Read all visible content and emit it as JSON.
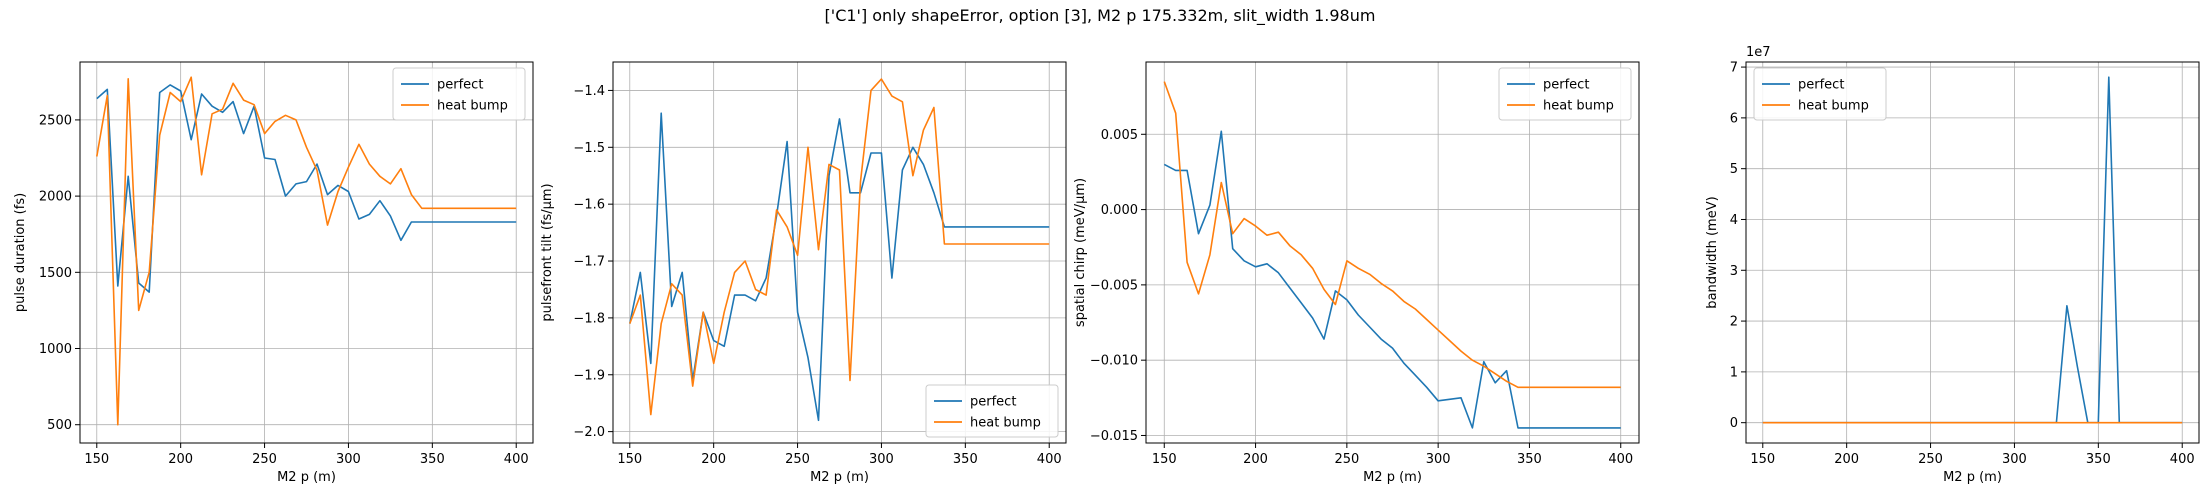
{
  "figure": {
    "title": "['C1'] only shapeError, option [3], M2 p 175.332m, slit_width 1.98um"
  },
  "chart_data": [
    {
      "type": "line",
      "xlabel": "M2 p (m)",
      "ylabel": "pulse duration (fs)",
      "xlim": [
        140,
        410
      ],
      "ylim": [
        380,
        2880
      ],
      "xticks": [
        150,
        200,
        250,
        300,
        350,
        400
      ],
      "yticks": [
        500,
        1000,
        1500,
        2000,
        2500
      ],
      "ytick_labels": [
        "500",
        "1000",
        "1500",
        "2000",
        "2500"
      ],
      "grid": true,
      "legend_position": "upper right",
      "x": [
        150,
        156.25,
        162.5,
        168.75,
        175,
        181.25,
        187.5,
        193.75,
        200,
        206.25,
        212.5,
        218.75,
        225,
        231.25,
        237.5,
        243.75,
        250,
        256.25,
        262.5,
        268.75,
        275,
        281.25,
        287.5,
        293.75,
        300,
        306.25,
        312.5,
        318.75,
        325,
        331.25,
        337.5,
        343.75,
        350,
        356.25,
        362.5,
        368.75,
        375,
        381.25,
        387.5,
        393.75,
        400
      ],
      "series": [
        {
          "name": "perfect",
          "color": "#1f77b4",
          "values": [
            2640,
            2700,
            1410,
            2130,
            1430,
            1370,
            2680,
            2730,
            2690,
            2370,
            2670,
            2590,
            2550,
            2620,
            2410,
            2590,
            2250,
            2240,
            2000,
            2080,
            2095,
            2210,
            2010,
            2070,
            2030,
            1850,
            1880,
            1970,
            1870,
            1710,
            1830,
            1830,
            1830,
            1830,
            1830,
            1830,
            1830,
            1830,
            1830,
            1830,
            1830
          ]
        },
        {
          "name": "heat bump",
          "color": "#ff7f0e",
          "values": [
            2260,
            2660,
            500,
            2770,
            1250,
            1500,
            2400,
            2680,
            2620,
            2780,
            2140,
            2540,
            2570,
            2740,
            2630,
            2600,
            2410,
            2490,
            2530,
            2500,
            2320,
            2170,
            1810,
            2030,
            2190,
            2340,
            2210,
            2130,
            2080,
            2180,
            2010,
            1920,
            1920,
            1920,
            1920,
            1920,
            1920,
            1920,
            1920,
            1920,
            1920
          ]
        }
      ]
    },
    {
      "type": "line",
      "xlabel": "M2 p (m)",
      "ylabel": "pulsefront tilt (fs/μm)",
      "xlim": [
        140,
        410
      ],
      "ylim": [
        -2.02,
        -1.35
      ],
      "xticks": [
        150,
        200,
        250,
        300,
        350,
        400
      ],
      "yticks": [
        -2.0,
        -1.9,
        -1.8,
        -1.7,
        -1.6,
        -1.5,
        -1.4
      ],
      "ytick_labels": [
        "−2.0",
        "−1.9",
        "−1.8",
        "−1.7",
        "−1.6",
        "−1.5",
        "−1.4"
      ],
      "grid": true,
      "legend_position": "lower right",
      "x": [
        150,
        156.25,
        162.5,
        168.75,
        175,
        181.25,
        187.5,
        193.75,
        200,
        206.25,
        212.5,
        218.75,
        225,
        231.25,
        237.5,
        243.75,
        250,
        256.25,
        262.5,
        268.75,
        275,
        281.25,
        287.5,
        293.75,
        300,
        306.25,
        312.5,
        318.75,
        325,
        331.25,
        337.5,
        343.75,
        350,
        356.25,
        362.5,
        368.75,
        375,
        381.25,
        387.5,
        393.75,
        400
      ],
      "series": [
        {
          "name": "perfect",
          "color": "#1f77b4",
          "values": [
            -1.81,
            -1.72,
            -1.88,
            -1.44,
            -1.78,
            -1.72,
            -1.91,
            -1.79,
            -1.84,
            -1.85,
            -1.76,
            -1.76,
            -1.77,
            -1.73,
            -1.62,
            -1.49,
            -1.79,
            -1.87,
            -1.98,
            -1.55,
            -1.45,
            -1.58,
            -1.58,
            -1.51,
            -1.51,
            -1.73,
            -1.54,
            -1.5,
            -1.53,
            -1.58,
            -1.64,
            -1.64,
            -1.64,
            -1.64,
            -1.64,
            -1.64,
            -1.64,
            -1.64,
            -1.64,
            -1.64,
            -1.64
          ]
        },
        {
          "name": "heat bump",
          "color": "#ff7f0e",
          "values": [
            -1.81,
            -1.76,
            -1.97,
            -1.81,
            -1.74,
            -1.76,
            -1.92,
            -1.79,
            -1.88,
            -1.79,
            -1.72,
            -1.7,
            -1.75,
            -1.76,
            -1.61,
            -1.64,
            -1.69,
            -1.5,
            -1.68,
            -1.53,
            -1.54,
            -1.91,
            -1.56,
            -1.4,
            -1.38,
            -1.41,
            -1.42,
            -1.55,
            -1.47,
            -1.43,
            -1.67,
            -1.67,
            -1.67,
            -1.67,
            -1.67,
            -1.67,
            -1.67,
            -1.67,
            -1.67,
            -1.67,
            -1.67
          ]
        }
      ]
    },
    {
      "type": "line",
      "xlabel": "M2 p (m)",
      "ylabel": "spatial chirp (meV/μm)",
      "xlim": [
        140,
        410
      ],
      "ylim": [
        -0.0155,
        0.0098
      ],
      "xticks": [
        150,
        200,
        250,
        300,
        350,
        400
      ],
      "yticks": [
        -0.015,
        -0.01,
        -0.005,
        0.0,
        0.005
      ],
      "ytick_labels": [
        "−0.015",
        "−0.010",
        "−0.005",
        "0.000",
        "0.005"
      ],
      "grid": true,
      "legend_position": "upper right",
      "x": [
        150,
        156.25,
        162.5,
        168.75,
        175,
        181.25,
        187.5,
        193.75,
        200,
        206.25,
        212.5,
        218.75,
        225,
        231.25,
        237.5,
        243.75,
        250,
        256.25,
        262.5,
        268.75,
        275,
        281.25,
        287.5,
        293.75,
        300,
        306.25,
        312.5,
        318.75,
        325,
        331.25,
        337.5,
        343.75,
        350,
        356.25,
        362.5,
        368.75,
        375,
        381.25,
        387.5,
        393.75,
        400
      ],
      "series": [
        {
          "name": "perfect",
          "color": "#1f77b4",
          "values": [
            0.003,
            0.0026,
            0.0026,
            -0.0016,
            0.0003,
            0.0052,
            -0.0026,
            -0.0034,
            -0.0038,
            -0.0036,
            -0.0042,
            -0.0052,
            -0.0062,
            -0.0072,
            -0.0086,
            -0.0054,
            -0.006,
            -0.007,
            -0.0078,
            -0.0086,
            -0.0092,
            -0.0102,
            -0.011,
            -0.0118,
            -0.0127,
            -0.0126,
            -0.0125,
            -0.0145,
            -0.0101,
            -0.0115,
            -0.0107,
            -0.0145,
            -0.0145,
            -0.0145,
            -0.0145,
            -0.0145,
            -0.0145,
            -0.0145,
            -0.0145,
            -0.0145,
            -0.0145
          ]
        },
        {
          "name": "heat bump",
          "color": "#ff7f0e",
          "values": [
            0.0085,
            0.0064,
            -0.0035,
            -0.0056,
            -0.003,
            0.0018,
            -0.0016,
            -0.0006,
            -0.0011,
            -0.0017,
            -0.0015,
            -0.0024,
            -0.003,
            -0.0039,
            -0.0053,
            -0.0063,
            -0.0034,
            -0.0039,
            -0.0043,
            -0.0049,
            -0.0054,
            -0.0061,
            -0.0066,
            -0.0073,
            -0.008,
            -0.0087,
            -0.0094,
            -0.01,
            -0.0104,
            -0.0109,
            -0.0114,
            -0.0118,
            -0.0118,
            -0.0118,
            -0.0118,
            -0.0118,
            -0.0118,
            -0.0118,
            -0.0118,
            -0.0118,
            -0.0118
          ]
        }
      ]
    },
    {
      "type": "line",
      "xlabel": "M2 p (m)",
      "ylabel": "bandwidth (meV)",
      "offset_text": "1e7",
      "xlim": [
        140,
        410
      ],
      "ylim": [
        -0.4,
        7.1
      ],
      "xticks": [
        150,
        200,
        250,
        300,
        350,
        400
      ],
      "yticks": [
        0,
        1,
        2,
        3,
        4,
        5,
        6,
        7
      ],
      "ytick_labels": [
        "0",
        "1",
        "2",
        "3",
        "4",
        "5",
        "6",
        "7"
      ],
      "grid": true,
      "legend_position": "upper left",
      "x": [
        150,
        156.25,
        162.5,
        168.75,
        175,
        181.25,
        187.5,
        193.75,
        200,
        206.25,
        212.5,
        218.75,
        225,
        231.25,
        237.5,
        243.75,
        250,
        256.25,
        262.5,
        268.75,
        275,
        281.25,
        287.5,
        293.75,
        300,
        306.25,
        312.5,
        318.75,
        325,
        331.25,
        337.5,
        343.75,
        350,
        356.25,
        362.5,
        368.75,
        375,
        381.25,
        387.5,
        393.75,
        400
      ],
      "series": [
        {
          "name": "perfect",
          "color": "#1f77b4",
          "values": [
            0,
            0,
            0,
            0,
            0,
            0,
            0,
            0,
            0,
            0,
            0,
            0,
            0,
            0,
            0,
            0,
            0,
            0,
            0,
            0,
            0,
            0,
            0,
            0,
            0,
            0,
            0,
            0,
            0,
            2.3,
            1.1,
            0,
            0,
            6.8,
            0,
            0,
            0,
            0,
            0,
            0,
            0
          ]
        },
        {
          "name": "heat bump",
          "color": "#ff7f0e",
          "values": [
            0,
            0,
            0,
            0,
            0,
            0,
            0,
            0,
            0,
            0,
            0,
            0,
            0,
            0,
            0,
            0,
            0,
            0,
            0,
            0,
            0,
            0,
            0,
            0,
            0,
            0,
            0,
            0,
            0,
            0,
            0,
            0,
            0,
            0,
            0,
            0,
            0,
            0,
            0,
            0,
            0
          ]
        }
      ]
    }
  ]
}
